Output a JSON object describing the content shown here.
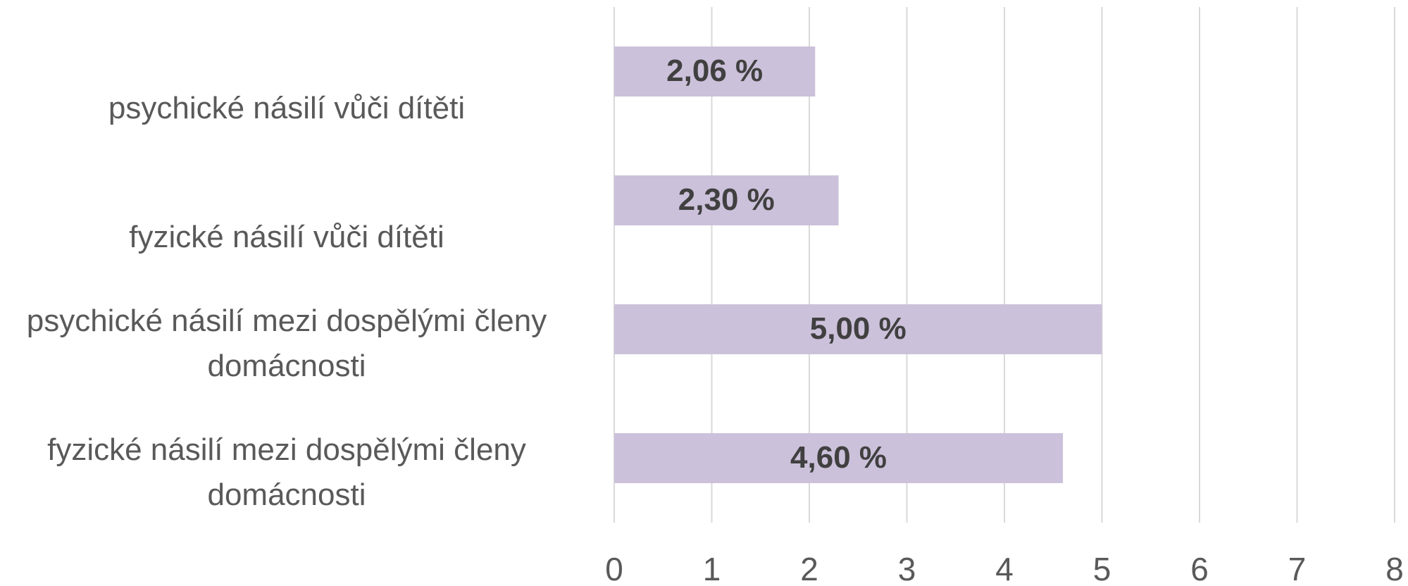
{
  "chart_data": {
    "type": "bar",
    "orientation": "horizontal",
    "categories": [
      "psychické násilí vůči dítěti",
      "fyzické násilí vůči dítěti",
      "psychické násilí mezi dospělými členy domácnosti",
      "fyzické násilí mezi dospělými členy domácnosti"
    ],
    "values": [
      2.06,
      2.3,
      5.0,
      4.6
    ],
    "value_labels": [
      "2,06 %",
      "2,30 %",
      "5,00 %",
      "4,60 %"
    ],
    "color": "#ccc1da",
    "xlim": [
      0,
      8
    ],
    "xticks": [
      0,
      1,
      2,
      3,
      4,
      5,
      6,
      7,
      8
    ],
    "grid": true
  }
}
